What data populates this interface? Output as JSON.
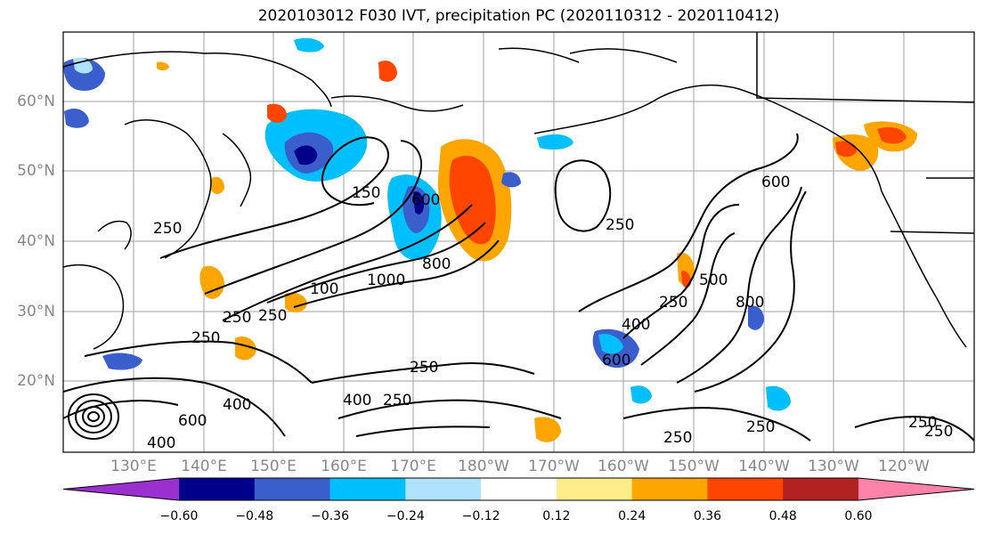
{
  "title": "2020103012 F030 IVT, precipitation PC (2020110312 - 2020110412)",
  "lat_labels": [
    "60°N",
    "50°N",
    "40°N",
    "30°N",
    "20°N"
  ],
  "lon_labels": [
    "130°E",
    "140°E",
    "150°E",
    "160°E",
    "170°E",
    "180°W",
    "170°W",
    "160°W",
    "150°W",
    "140°W",
    "130°W",
    "120°W"
  ],
  "contour_labels": [
    "250",
    "150",
    "100",
    "600",
    "800",
    "1000",
    "250",
    "250",
    "250",
    "400",
    "250",
    "400",
    "600",
    "400",
    "250",
    "250",
    "600",
    "500",
    "800",
    "600",
    "250",
    "400",
    "250",
    "250",
    "250",
    "250"
  ],
  "colorbar": {
    "ticks": [
      "−0.60",
      "−0.48",
      "−0.36",
      "−0.24",
      "−0.12",
      "0.12",
      "0.24",
      "0.36",
      "0.48",
      "0.60"
    ],
    "colors": [
      "#9b30d0",
      "#00008b",
      "#3a5fcd",
      "#00bfff",
      "#b0e2ff",
      "#ffffff",
      "#ffec8b",
      "#ffa500",
      "#ff4500",
      "#b22222",
      "#ff82ab"
    ]
  }
}
